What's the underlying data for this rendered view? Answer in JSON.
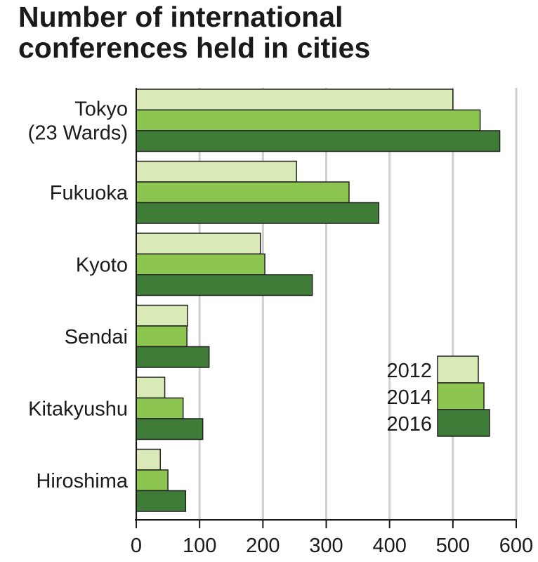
{
  "chart_data": {
    "type": "bar",
    "orientation": "horizontal",
    "title": "Number of international\nconferences held in cities",
    "categories": [
      "Tokyo\n(23 Wards)",
      "Fukuoka",
      "Kyoto",
      "Sendai",
      "Kitakyushu",
      "Hiroshima"
    ],
    "series": [
      {
        "name": "2012",
        "color": "#daebb7",
        "values": [
          500,
          253,
          196,
          81,
          45,
          38
        ]
      },
      {
        "name": "2014",
        "color": "#8cc651",
        "values": [
          543,
          336,
          203,
          80,
          74,
          50
        ]
      },
      {
        "name": "2016",
        "color": "#3f7c38",
        "values": [
          574,
          383,
          278,
          115,
          105,
          78
        ]
      }
    ],
    "xlim": [
      0,
      600
    ],
    "xticks": [
      0,
      100,
      200,
      300,
      400,
      500,
      600
    ],
    "grid": true,
    "legend": "right"
  }
}
